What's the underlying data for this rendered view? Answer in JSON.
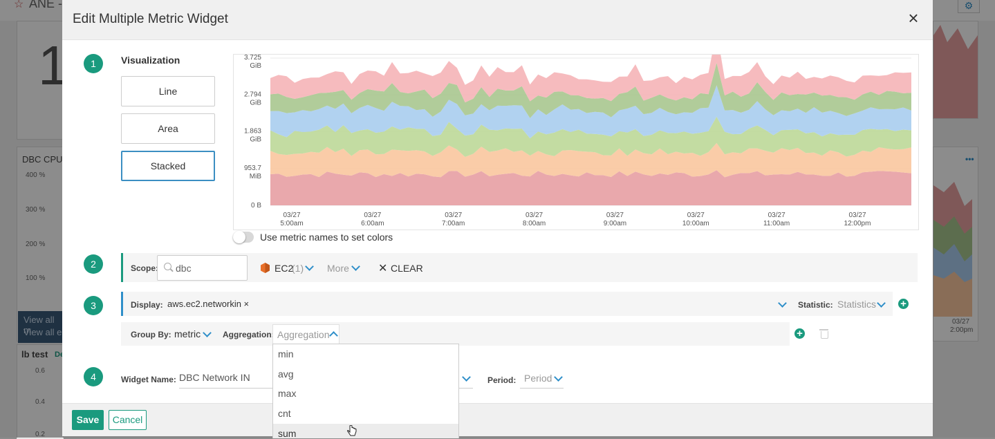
{
  "background": {
    "app_title": "ANE -",
    "big_number": "1",
    "dbc_cpu_title": "DBC CPU",
    "dbc_cpu_ticks": [
      "400 %",
      "300 %",
      "200 %",
      "100 %"
    ],
    "view_all_1": "View all m",
    "view_all_2": "View all e",
    "lb_test_title": "lb test",
    "lb_test_link": "De",
    "lb_ticks": [
      "0.6",
      "0.4",
      "0.2"
    ],
    "right_date": "03/27",
    "right_time": "2:00pm",
    "more_dots": "•••"
  },
  "modal": {
    "title": "Edit Multiple Metric Widget",
    "close_label": "×"
  },
  "steps": [
    "1",
    "2",
    "3",
    "4"
  ],
  "visualization": {
    "label": "Visualization",
    "options": [
      "Line",
      "Area",
      "Stacked"
    ],
    "selected": "Stacked"
  },
  "chart_data": {
    "type": "area",
    "stacked": true,
    "y_ticks": [
      {
        "line1": "3.725",
        "line2": "GiB"
      },
      {
        "line1": "2.794",
        "line2": "GiB"
      },
      {
        "line1": "1.863",
        "line2": "GiB"
      },
      {
        "line1": "953.7",
        "line2": "MiB"
      },
      {
        "line1": "0 B",
        "line2": ""
      }
    ],
    "x_ticks": [
      {
        "date": "03/27",
        "time": "5:00am"
      },
      {
        "date": "03/27",
        "time": "6:00am"
      },
      {
        "date": "03/27",
        "time": "7:00am"
      },
      {
        "date": "03/27",
        "time": "8:00am"
      },
      {
        "date": "03/27",
        "time": "9:00am"
      },
      {
        "date": "03/27",
        "time": "10:00am"
      },
      {
        "date": "03/27",
        "time": "11:00am"
      },
      {
        "date": "03/27",
        "time": "12:00pm"
      }
    ],
    "ylim_gib": [
      0,
      3.725
    ],
    "series_colors": [
      "#e79ea3",
      "#f9c79f",
      "#bcd898",
      "#a9cdee",
      "#a8c78f",
      "#f5b4b7"
    ]
  },
  "colors_toggle": {
    "label": "Use metric names to set colors",
    "on": false
  },
  "scope": {
    "label": "Scope:",
    "search_value": "dbc",
    "service": "EC2",
    "service_count": "(1)",
    "more": "More",
    "clear": "CLEAR"
  },
  "display": {
    "label": "Display:",
    "metric": "aws.ec2.networkin ×",
    "statistic_label": "Statistic:",
    "statistic_value": "Statistics"
  },
  "group": {
    "group_by_label": "Group By:",
    "group_by_value": "metric",
    "aggregation_label": "Aggregation:",
    "aggregation_placeholder": "Aggregation",
    "options": [
      "min",
      "avg",
      "max",
      "cnt",
      "sum"
    ],
    "hovered": "sum"
  },
  "widget": {
    "name_label": "Widget Name:",
    "name_value": "DBC Network IN",
    "period_label": "Period:",
    "period_value": "Period"
  },
  "footer": {
    "save": "Save",
    "cancel": "Cancel"
  },
  "colors": {
    "accent": "#1a9a7e",
    "link": "#2f8fc9",
    "selected_border": "#3b8ec2"
  }
}
